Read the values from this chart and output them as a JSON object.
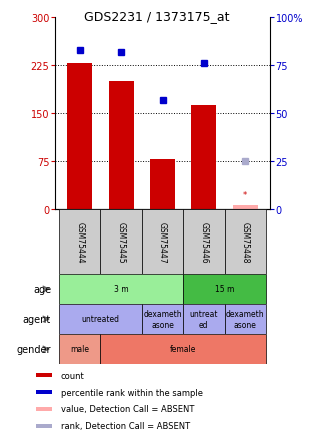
{
  "title": "GDS2231 / 1373175_at",
  "samples": [
    "GSM75444",
    "GSM75445",
    "GSM75447",
    "GSM75446",
    "GSM75448"
  ],
  "bar_values": [
    228,
    200,
    78,
    163,
    7
  ],
  "bar_color": "#cc0000",
  "dot_pct": [
    83,
    82,
    57,
    76,
    25
  ],
  "dot_colors": [
    "#0000cc",
    "#0000cc",
    "#0000cc",
    "#0000cc",
    "#aaaacc"
  ],
  "ylim_left": [
    0,
    300
  ],
  "ylim_right": [
    0,
    100
  ],
  "yticks_left": [
    0,
    75,
    150,
    225,
    300
  ],
  "yticks_right": [
    0,
    25,
    50,
    75,
    100
  ],
  "ytick_labels_left": [
    "0",
    "75",
    "150",
    "225",
    "300"
  ],
  "ytick_labels_right": [
    "0",
    "25",
    "50",
    "75",
    "100%"
  ],
  "age_groups": [
    {
      "label": "3 m",
      "cols": [
        0,
        1,
        2
      ],
      "color": "#99ee99"
    },
    {
      "label": "15 m",
      "cols": [
        3,
        4
      ],
      "color": "#44bb44"
    }
  ],
  "agent_groups": [
    {
      "label": "untreated",
      "cols": [
        0,
        1
      ],
      "color": "#aaaaee"
    },
    {
      "label": "dexameth\nasone",
      "cols": [
        2
      ],
      "color": "#aaaaee"
    },
    {
      "label": "untreat\ned",
      "cols": [
        3
      ],
      "color": "#aaaaee"
    },
    {
      "label": "dexameth\nasone",
      "cols": [
        4
      ],
      "color": "#aaaaee"
    }
  ],
  "gender_groups": [
    {
      "label": "male",
      "cols": [
        0
      ],
      "color": "#ee9988"
    },
    {
      "label": "female",
      "cols": [
        1,
        2,
        3,
        4
      ],
      "color": "#ee7766"
    }
  ],
  "legend_items": [
    {
      "color": "#cc0000",
      "label": "count"
    },
    {
      "color": "#0000cc",
      "label": "percentile rank within the sample"
    },
    {
      "color": "#ffaaaa",
      "label": "value, Detection Call = ABSENT"
    },
    {
      "color": "#aaaacc",
      "label": "rank, Detection Call = ABSENT"
    }
  ],
  "sample_box_color": "#cccccc",
  "absent_bar_color": "#ffaaaa",
  "absent_marker_color": "#cc0000"
}
